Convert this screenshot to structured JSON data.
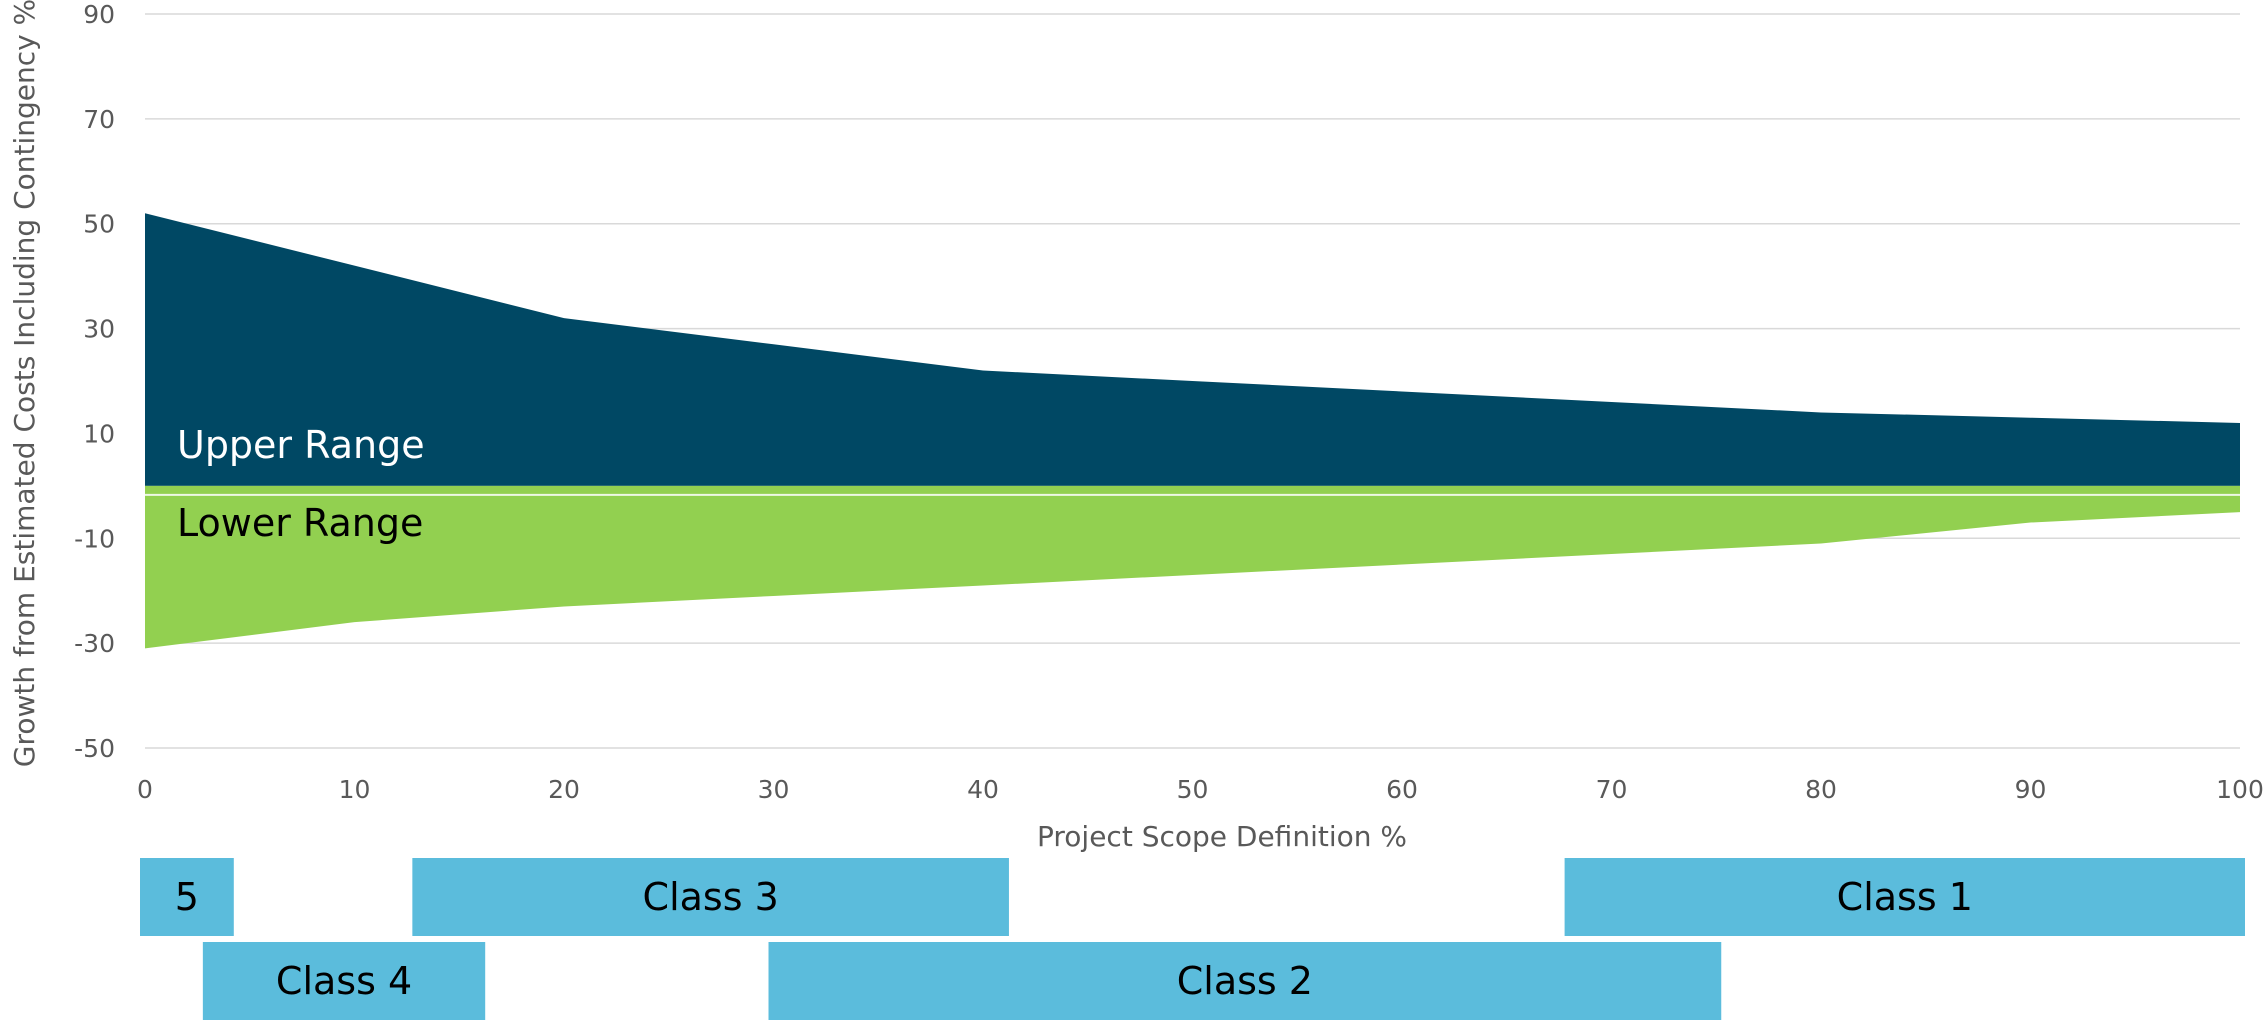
{
  "chart_data": {
    "type": "area",
    "title": "",
    "xlabel": "Project Scope Definition %",
    "ylabel": "Growth from Estimated Costs Including Contingency %",
    "xlim": [
      0,
      100
    ],
    "ylim": [
      -50,
      90
    ],
    "x_ticks": [
      0,
      10,
      20,
      30,
      40,
      50,
      60,
      70,
      80,
      90,
      100
    ],
    "y_ticks": [
      -50,
      -30,
      -10,
      10,
      30,
      50,
      70,
      90
    ],
    "grid": "horizontal",
    "x": [
      0,
      10,
      20,
      30,
      40,
      50,
      60,
      70,
      80,
      90,
      100
    ],
    "series": [
      {
        "name": "Upper Range",
        "color": "#004864",
        "values": [
          52,
          42,
          32,
          27,
          22,
          20,
          18,
          16,
          14,
          13,
          12
        ]
      },
      {
        "name": "Lower Range",
        "color": "#92d050",
        "values": [
          -31,
          -26,
          -23,
          -21,
          -19,
          -17,
          -15,
          -13,
          -11,
          -7,
          -5
        ]
      }
    ],
    "baseline": 0,
    "class_bars": {
      "color": "#5bbcdc",
      "items": [
        {
          "label": "5",
          "start": 0,
          "end": 4,
          "row": 1
        },
        {
          "label": "Class 4",
          "start": 3,
          "end": 16,
          "row": 2
        },
        {
          "label": "Class 3",
          "start": 13,
          "end": 41,
          "row": 1
        },
        {
          "label": "Class 2",
          "start": 30,
          "end": 75,
          "row": 2
        },
        {
          "label": "Class 1",
          "start": 68,
          "end": 100,
          "row": 1
        }
      ]
    }
  }
}
